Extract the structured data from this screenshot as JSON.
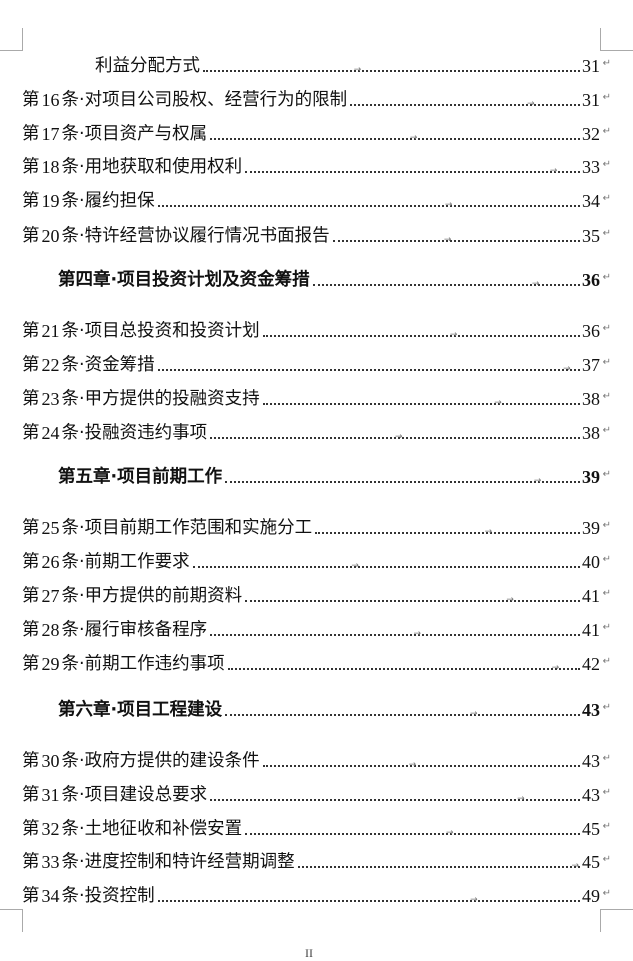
{
  "toc": [
    {
      "type": "sub",
      "title": "利益分配方式",
      "page": "31"
    },
    {
      "type": "article",
      "num": "16",
      "title": "对项目公司股权、经营行为的限制",
      "page": "31"
    },
    {
      "type": "article",
      "num": "17",
      "title": "项目资产与权属",
      "page": "32"
    },
    {
      "type": "article",
      "num": "18",
      "title": "用地获取和使用权利",
      "page": "33"
    },
    {
      "type": "article",
      "num": "19",
      "title": "履约担保",
      "page": "34"
    },
    {
      "type": "article",
      "num": "20",
      "title": "特许经营协议履行情况书面报告",
      "page": "35"
    },
    {
      "type": "chapter",
      "title": "第四章·项目投资计划及资金筹措",
      "page": "36"
    },
    {
      "type": "article",
      "num": "21",
      "title": "项目总投资和投资计划",
      "page": "36"
    },
    {
      "type": "article",
      "num": "22",
      "title": "资金筹措",
      "page": "37"
    },
    {
      "type": "article",
      "num": "23",
      "title": "甲方提供的投融资支持",
      "page": "38"
    },
    {
      "type": "article",
      "num": "24",
      "title": "投融资违约事项",
      "page": "38"
    },
    {
      "type": "chapter",
      "title": "第五章·项目前期工作",
      "page": "39"
    },
    {
      "type": "article",
      "num": "25",
      "title": "项目前期工作范围和实施分工",
      "page": "39"
    },
    {
      "type": "article",
      "num": "26",
      "title": "前期工作要求",
      "page": "40"
    },
    {
      "type": "article",
      "num": "27",
      "title": "甲方提供的前期资料",
      "page": "41"
    },
    {
      "type": "article",
      "num": "28",
      "title": "履行审核备程序",
      "page": "41"
    },
    {
      "type": "article",
      "num": "29",
      "title": "前期工作违约事项",
      "page": "42"
    },
    {
      "type": "chapter",
      "title": "第六章·项目工程建设",
      "page": "43"
    },
    {
      "type": "article",
      "num": "30",
      "title": "政府方提供的建设条件",
      "page": "43"
    },
    {
      "type": "article",
      "num": "31",
      "title": "项目建设总要求",
      "page": "43"
    },
    {
      "type": "article",
      "num": "32",
      "title": "土地征收和补偿安置",
      "page": "45"
    },
    {
      "type": "article",
      "num": "33",
      "title": "进度控制和特许经营期调整",
      "page": "45"
    },
    {
      "type": "article",
      "num": "34",
      "title": "投资控制",
      "page": "49"
    }
  ],
  "labels": {
    "article_prefix": "第",
    "article_suffix": "条·"
  },
  "footer": {
    "page_number": "II"
  }
}
